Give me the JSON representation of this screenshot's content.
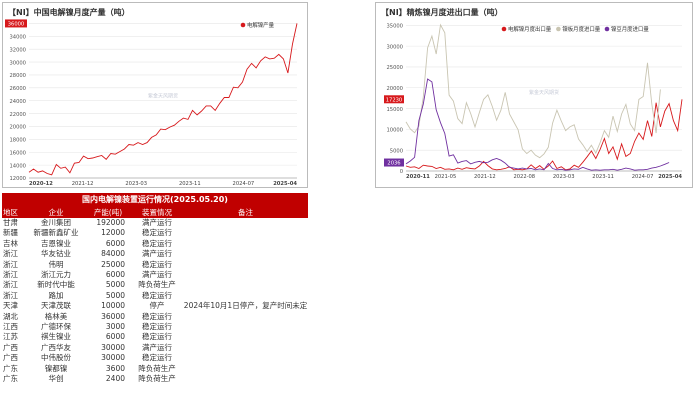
{
  "chart_data": [
    {
      "type": "line",
      "title": "【NI】中国电解镍月度产量（吨）",
      "legend": "top-right",
      "series": [
        {
          "name": "电解镍产量",
          "color": "#d7191c",
          "values": [
            12900,
            13400,
            12900,
            13100,
            12700,
            12500,
            14100,
            13500,
            13700,
            12800,
            14300,
            14400,
            15400,
            15000,
            15100,
            15300,
            15500,
            14900,
            15800,
            15700,
            16100,
            16500,
            17200,
            17100,
            17500,
            17200,
            17500,
            18300,
            18700,
            19600,
            19500,
            19900,
            20200,
            20800,
            21300,
            21100,
            22500,
            21800,
            22400,
            23200,
            23200,
            22500,
            23600,
            24500,
            24500,
            26100,
            26000,
            26900,
            28900,
            29800,
            29100,
            30200,
            30800,
            30500,
            30600,
            31200,
            30500,
            28300,
            32800,
            36000
          ]
        }
      ],
      "x_start": "2020-12",
      "x_ticks": [
        "2020-12",
        "2021-12",
        "2023-03",
        "2023-11",
        "2024-07",
        "2025-04"
      ],
      "y_ticks": [
        12000,
        14000,
        16000,
        18000,
        20000,
        22000,
        24000,
        26000,
        28000,
        30000,
        32000,
        34000,
        36000
      ],
      "ylim": [
        12000,
        37000
      ],
      "last_label": "36000",
      "watermark": "紫金天风期货"
    },
    {
      "type": "line",
      "title": "【NI】精炼镍月度进出口量（吨）",
      "legend": "top",
      "series": [
        {
          "name": "电解镍月度出口量",
          "color": "#d7191c",
          "values": [
            1200,
            900,
            1000,
            600,
            1400,
            1200,
            1100,
            600,
            900,
            400,
            500,
            300,
            700,
            400,
            800,
            600,
            500,
            1200,
            2300,
            1300,
            500,
            300,
            400,
            600,
            1000,
            300,
            400,
            300,
            500,
            1500,
            600,
            1300,
            400,
            1200,
            2400,
            600,
            1000,
            300,
            500,
            1400,
            900,
            2100,
            3400,
            4800,
            3000,
            5200,
            7800,
            4200,
            5800,
            2800,
            6500,
            3500,
            4200,
            7100,
            9100,
            7600,
            12100,
            8300,
            16400,
            10600,
            14400,
            16200,
            12100,
            9700,
            17230
          ]
        },
        {
          "name": "镍板月度进口量",
          "color": "#c9c5b2",
          "values": [
            11800,
            10100,
            9200,
            10800,
            17800,
            29600,
            32400,
            28100,
            35100,
            33200,
            18200,
            16800,
            12600,
            11400,
            16400,
            13800,
            10600,
            14000,
            17200,
            18300,
            15500,
            12200,
            14600,
            18900,
            13700,
            11800,
            9900,
            5300,
            4200,
            5000,
            3800,
            3200,
            4100,
            5700,
            11500,
            14600,
            12000,
            9700,
            10600,
            11100,
            7700,
            6300,
            4700,
            6200,
            4300,
            6800,
            9700,
            8100,
            13200,
            9500,
            13700,
            16000,
            11300,
            9700,
            17200,
            17900,
            26000,
            16100,
            9100,
            19600
          ]
        },
        {
          "name": "镍豆月度进口量",
          "color": "#7030a0",
          "values": [
            1700,
            2400,
            3300,
            12100,
            16100,
            22100,
            21400,
            14700,
            11600,
            9000,
            3600,
            3900,
            1900,
            2300,
            2500,
            1700,
            2100,
            2300,
            2000,
            2100,
            2700,
            3000,
            2600,
            1900,
            900,
            700,
            500,
            700,
            500,
            600,
            300,
            500,
            300,
            1800,
            600,
            300,
            400,
            200,
            300,
            500,
            400,
            900,
            500,
            200,
            300,
            200,
            300,
            300,
            400,
            200,
            400,
            700,
            500,
            200,
            300,
            300,
            400,
            700,
            900,
            1200,
            1600,
            2036
          ]
        }
      ],
      "x_ticks": [
        "2020-11",
        "2021-05",
        "2021-12",
        "2022-08",
        "2023-03",
        "2023-11",
        "2024-07",
        "2025-04"
      ],
      "y_ticks": [
        0,
        5000,
        10000,
        15000,
        20000,
        25000,
        30000,
        35000
      ],
      "ylim": [
        0,
        37000
      ],
      "last_labels": [
        "17230",
        "2036"
      ],
      "watermark": "紫金天风期货"
    }
  ],
  "table": {
    "title": "国内电解镍装置运行情况(2025.05.20)",
    "headers": [
      "地区",
      "企业",
      "产能(吨)",
      "装置情况",
      "备注"
    ],
    "rows": [
      [
        "甘肃",
        "金川集团",
        "192000",
        "满产运行",
        ""
      ],
      [
        "新疆",
        "新疆新鑫矿业",
        "12000",
        "稳定运行",
        ""
      ],
      [
        "吉林",
        "吉恩镍业",
        "6000",
        "稳定运行",
        ""
      ],
      [
        "浙江",
        "华友钴业",
        "84000",
        "满产运行",
        ""
      ],
      [
        "浙江",
        "伟明",
        "25000",
        "稳定运行",
        ""
      ],
      [
        "浙江",
        "浙江元力",
        "6000",
        "满产运行",
        ""
      ],
      [
        "浙江",
        "新时代中能",
        "5000",
        "降负荷生产",
        ""
      ],
      [
        "浙江",
        "路加",
        "5000",
        "稳定运行",
        ""
      ],
      [
        "天津",
        "天津茂联",
        "10000",
        "停产",
        "2024年10月1日停产，复产时间未定"
      ],
      [
        "湖北",
        "格林美",
        "36000",
        "稳定运行",
        ""
      ],
      [
        "江西",
        "广德环保",
        "3000",
        "稳定运行",
        ""
      ],
      [
        "江苏",
        "祺生镍业",
        "6000",
        "稳定运行",
        ""
      ],
      [
        "广西",
        "广西华友",
        "30000",
        "满产运行",
        ""
      ],
      [
        "广西",
        "中伟股份",
        "30000",
        "稳定运行",
        ""
      ],
      [
        "广东",
        "镍都镍",
        "3600",
        "降负荷生产",
        ""
      ],
      [
        "广东",
        "华创",
        "2400",
        "降负荷生产",
        ""
      ]
    ]
  }
}
